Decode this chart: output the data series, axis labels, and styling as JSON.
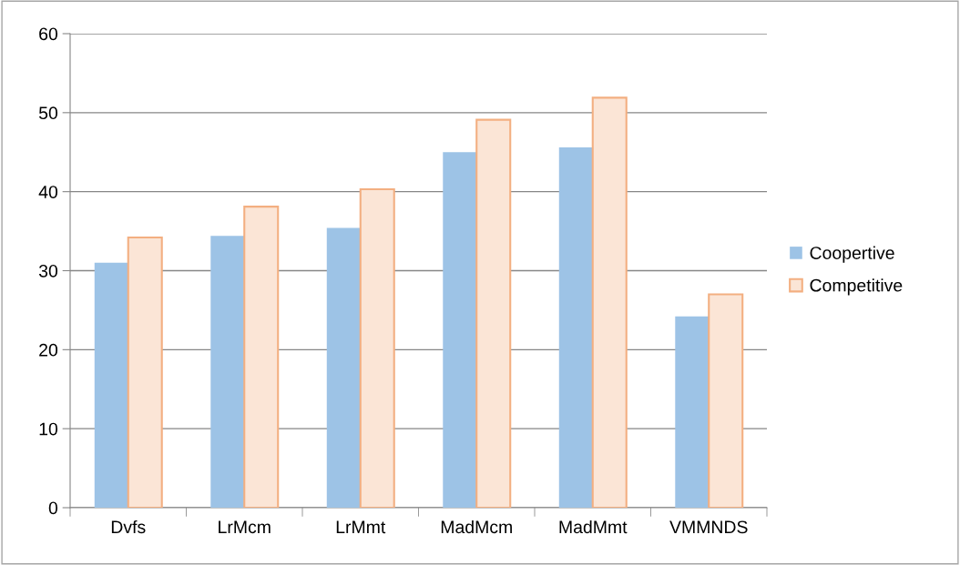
{
  "chart_data": {
    "type": "bar",
    "categories": [
      "Dvfs",
      "LrMcm",
      "LrMmt",
      "MadMcm",
      "MadMmt",
      "VMMNDS"
    ],
    "series": [
      {
        "name": "Coopertive",
        "color": "#9dc3e6",
        "values": [
          31.0,
          34.4,
          35.4,
          45.0,
          45.6,
          24.2
        ]
      },
      {
        "name": "Competitive",
        "color": "#fbe5d6",
        "values": [
          34.2,
          38.1,
          40.3,
          49.1,
          51.9,
          27.0
        ]
      }
    ],
    "ylim": [
      0,
      60
    ],
    "yticks": [
      0,
      10,
      20,
      30,
      40,
      50,
      60
    ],
    "grid": "y",
    "legend": "right"
  }
}
